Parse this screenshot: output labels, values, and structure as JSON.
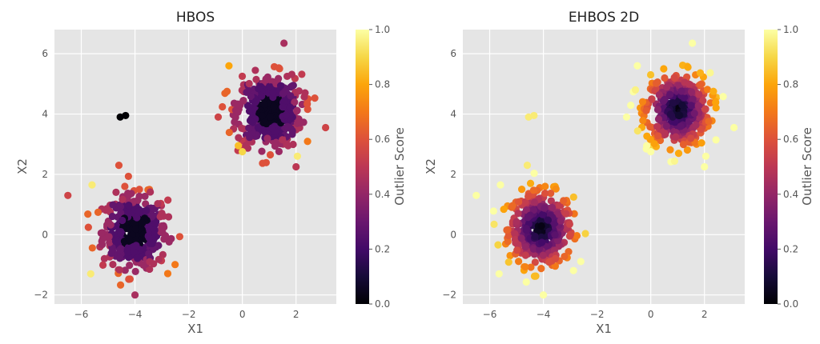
{
  "chart_data": [
    {
      "type": "scatter",
      "title": "HBOS",
      "xlabel": "X1",
      "ylabel": "X2",
      "colorbar_label": "Outlier Score",
      "xlim": [
        -7,
        3.5
      ],
      "ylim": [
        -2.3,
        6.8
      ],
      "xticks": [
        -6,
        -4,
        -2,
        0,
        2
      ],
      "yticks": [
        -2,
        0,
        2,
        4,
        6
      ],
      "colorbar_ticks": [
        0.0,
        0.2,
        0.4,
        0.6,
        0.8,
        1.0
      ],
      "colorbar_range": [
        0.0,
        1.0
      ],
      "colormap": "inferno",
      "grid": true,
      "background": "#e5e5e5",
      "clusters": [
        {
          "center": [
            -4.0,
            0.1
          ],
          "radius": 1.85,
          "score_pattern": "dark core, purple/magenta rim (histogram blocks)"
        },
        {
          "center": [
            1.0,
            4.1
          ],
          "radius": 1.75,
          "score_pattern": "dark core, purple/magenta rim (histogram blocks)"
        }
      ],
      "points": [
        {
          "x": -4.55,
          "y": 3.9,
          "score": 0.0
        },
        {
          "x": -4.35,
          "y": 3.95,
          "score": 0.0
        },
        {
          "x": -6.5,
          "y": 1.3,
          "score": 0.55
        },
        {
          "x": -5.65,
          "y": -1.3,
          "score": 0.95
        },
        {
          "x": -4.0,
          "y": -2.0,
          "score": 0.45
        },
        {
          "x": -4.6,
          "y": 2.3,
          "score": 0.6
        },
        {
          "x": -5.6,
          "y": 1.65,
          "score": 0.95
        },
        {
          "x": -0.5,
          "y": 5.6,
          "score": 0.8
        },
        {
          "x": 1.55,
          "y": 6.35,
          "score": 0.45
        },
        {
          "x": 3.1,
          "y": 3.55,
          "score": 0.55
        },
        {
          "x": -0.9,
          "y": 3.9,
          "score": 0.55
        },
        {
          "x": -0.15,
          "y": 2.95,
          "score": 0.85
        },
        {
          "x": 0.0,
          "y": 2.75,
          "score": 0.9
        },
        {
          "x": 2.05,
          "y": 2.6,
          "score": 0.95
        },
        {
          "x": 2.0,
          "y": 2.25,
          "score": 0.5
        }
      ]
    },
    {
      "type": "scatter",
      "title": "EHBOS 2D",
      "xlabel": "X1",
      "ylabel": "X2",
      "colorbar_label": "Outlier Score",
      "xlim": [
        -7,
        3.5
      ],
      "ylim": [
        -2.3,
        6.8
      ],
      "xticks": [
        -6,
        -4,
        -2,
        0,
        2
      ],
      "yticks": [
        -2,
        0,
        2,
        4,
        6
      ],
      "colorbar_ticks": [
        0.0,
        0.2,
        0.4,
        0.6,
        0.8,
        1.0
      ],
      "colorbar_range": [
        0.0,
        1.0
      ],
      "colormap": "inferno",
      "grid": true,
      "background": "#e5e5e5",
      "clusters": [
        {
          "center": [
            -4.1,
            0.2
          ],
          "radius": 1.85,
          "score_pattern": "concentric rings: black core to yellow edge"
        },
        {
          "center": [
            1.0,
            4.15
          ],
          "radius": 1.75,
          "score_pattern": "concentric rings: black core to yellow edge"
        }
      ],
      "points": [
        {
          "x": -4.55,
          "y": 3.9,
          "score": 0.95
        },
        {
          "x": -4.35,
          "y": 3.95,
          "score": 0.95
        },
        {
          "x": -6.5,
          "y": 1.3,
          "score": 1.0
        },
        {
          "x": -5.65,
          "y": -1.3,
          "score": 1.0
        },
        {
          "x": -4.0,
          "y": -2.0,
          "score": 1.0
        },
        {
          "x": -4.6,
          "y": 2.3,
          "score": 0.95
        },
        {
          "x": -5.6,
          "y": 1.65,
          "score": 1.0
        },
        {
          "x": -0.5,
          "y": 5.6,
          "score": 1.0
        },
        {
          "x": 1.55,
          "y": 6.35,
          "score": 1.0
        },
        {
          "x": 3.1,
          "y": 3.55,
          "score": 1.0
        },
        {
          "x": -0.9,
          "y": 3.9,
          "score": 1.0
        },
        {
          "x": -0.15,
          "y": 2.95,
          "score": 1.0
        },
        {
          "x": 0.0,
          "y": 2.75,
          "score": 1.0
        },
        {
          "x": 2.05,
          "y": 2.6,
          "score": 1.0
        },
        {
          "x": 2.0,
          "y": 2.25,
          "score": 1.0
        }
      ]
    }
  ]
}
